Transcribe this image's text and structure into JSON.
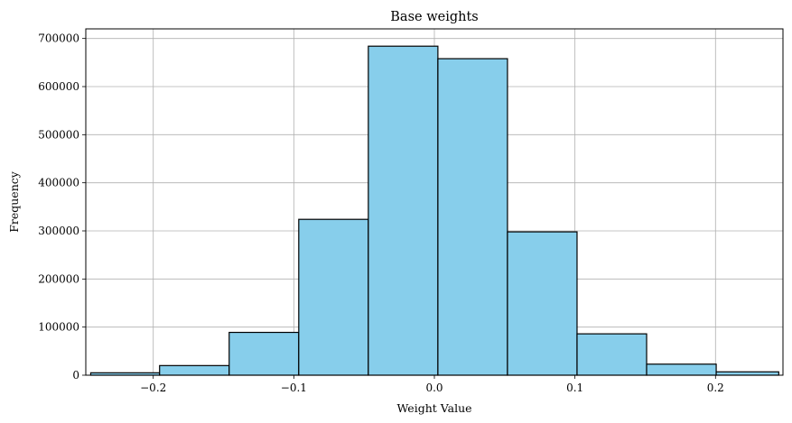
{
  "chart_data": {
    "type": "bar",
    "subtype": "histogram",
    "title": "Base weights",
    "xlabel": "Weight Value",
    "ylabel": "Frequency",
    "xlim": [
      -0.248,
      0.248
    ],
    "ylim": [
      0,
      720000
    ],
    "xticks": [
      -0.2,
      -0.1,
      0.0,
      0.1,
      0.2
    ],
    "xtick_labels": [
      "−0.2",
      "−0.1",
      "0.0",
      "0.1",
      "0.2"
    ],
    "yticks": [
      0,
      100000,
      200000,
      300000,
      400000,
      500000,
      600000,
      700000
    ],
    "ytick_labels": [
      "0",
      "100000",
      "200000",
      "300000",
      "400000",
      "500000",
      "600000",
      "700000"
    ],
    "grid": true,
    "bar_color": "#87CEEB",
    "edge_color": "#000000",
    "bins": [
      {
        "x0": -0.2445,
        "x1": -0.1955,
        "count": 5000
      },
      {
        "x0": -0.1955,
        "x1": -0.146,
        "count": 20000
      },
      {
        "x0": -0.146,
        "x1": -0.0965,
        "count": 89000
      },
      {
        "x0": -0.0965,
        "x1": -0.047,
        "count": 324000
      },
      {
        "x0": -0.047,
        "x1": 0.0025,
        "count": 684000
      },
      {
        "x0": 0.0025,
        "x1": 0.052,
        "count": 658000
      },
      {
        "x0": 0.052,
        "x1": 0.1015,
        "count": 298000
      },
      {
        "x0": 0.1015,
        "x1": 0.151,
        "count": 86000
      },
      {
        "x0": 0.151,
        "x1": 0.2005,
        "count": 23000
      },
      {
        "x0": 0.2005,
        "x1": 0.245,
        "count": 7000
      }
    ]
  }
}
